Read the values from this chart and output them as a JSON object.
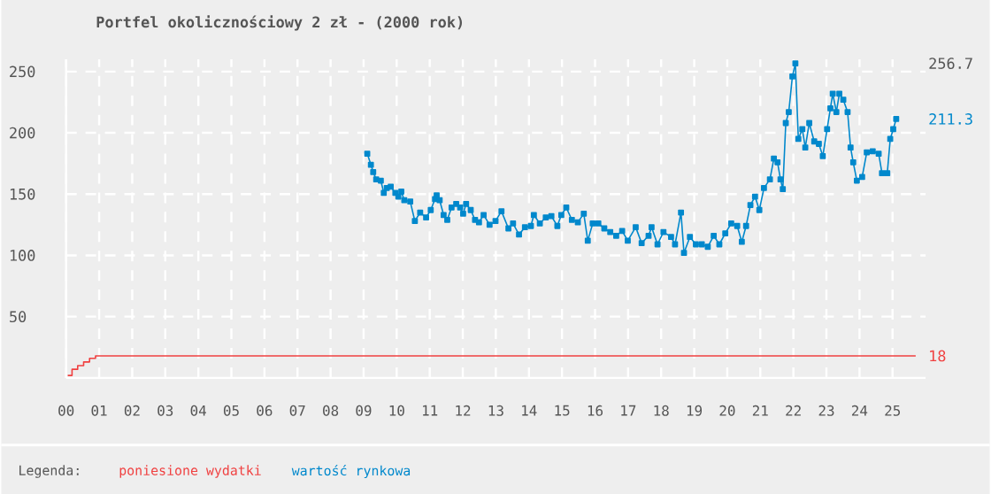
{
  "chart_data": {
    "type": "line",
    "title": "Portfel okolicznościowy 2 zł - (2000 rok)",
    "legend_title": "Legenda:",
    "legend": "bottom",
    "grid": true,
    "xlim": [
      2000,
      2026
    ],
    "ylim": [
      0,
      260
    ],
    "yticks": [
      50,
      100,
      150,
      200,
      250
    ],
    "xticks": [
      {
        "value": 2000,
        "label": "00"
      },
      {
        "value": 2001,
        "label": "01"
      },
      {
        "value": 2002,
        "label": "02"
      },
      {
        "value": 2003,
        "label": "03"
      },
      {
        "value": 2004,
        "label": "04"
      },
      {
        "value": 2005,
        "label": "05"
      },
      {
        "value": 2006,
        "label": "06"
      },
      {
        "value": 2007,
        "label": "07"
      },
      {
        "value": 2008,
        "label": "08"
      },
      {
        "value": 2009,
        "label": "09"
      },
      {
        "value": 2010,
        "label": "10"
      },
      {
        "value": 2011,
        "label": "11"
      },
      {
        "value": 2012,
        "label": "12"
      },
      {
        "value": 2013,
        "label": "13"
      },
      {
        "value": 2014,
        "label": "14"
      },
      {
        "value": 2015,
        "label": "15"
      },
      {
        "value": 2016,
        "label": "16"
      },
      {
        "value": 2017,
        "label": "17"
      },
      {
        "value": 2018,
        "label": "18"
      },
      {
        "value": 2019,
        "label": "19"
      },
      {
        "value": 2020,
        "label": "20"
      },
      {
        "value": 2021,
        "label": "21"
      },
      {
        "value": 2022,
        "label": "22"
      },
      {
        "value": 2023,
        "label": "23"
      },
      {
        "value": 2024,
        "label": "24"
      },
      {
        "value": 2025,
        "label": "25"
      }
    ],
    "series": [
      {
        "name": "poniesione wydatki",
        "type": "step",
        "color": "#f04040",
        "marker": "none",
        "x": [
          2000.05,
          2000.18,
          2000.35,
          2000.53,
          2000.71,
          2000.89,
          2025.7
        ],
        "values": [
          2,
          7,
          10,
          13,
          16,
          18,
          18
        ]
      },
      {
        "name": "wartość rynkowa",
        "color": "#0088cc",
        "marker": "square",
        "x": [
          2009.11,
          2009.22,
          2009.29,
          2009.38,
          2009.52,
          2009.61,
          2009.7,
          2009.82,
          2009.96,
          2010.05,
          2010.14,
          2010.23,
          2010.41,
          2010.55,
          2010.71,
          2010.89,
          2011.03,
          2011.16,
          2011.21,
          2011.3,
          2011.42,
          2011.53,
          2011.66,
          2011.8,
          2011.92,
          2012.01,
          2012.1,
          2012.24,
          2012.37,
          2012.49,
          2012.63,
          2012.81,
          2012.99,
          2013.17,
          2013.38,
          2013.52,
          2013.7,
          2013.88,
          2014.06,
          2014.15,
          2014.33,
          2014.51,
          2014.68,
          2014.86,
          2014.98,
          2015.13,
          2015.3,
          2015.48,
          2015.66,
          2015.78,
          2015.93,
          2016.1,
          2016.28,
          2016.46,
          2016.64,
          2016.82,
          2016.99,
          2017.23,
          2017.41,
          2017.62,
          2017.71,
          2017.89,
          2018.07,
          2018.3,
          2018.42,
          2018.6,
          2018.69,
          2018.87,
          2019.05,
          2019.23,
          2019.41,
          2019.59,
          2019.76,
          2019.94,
          2020.12,
          2020.3,
          2020.44,
          2020.57,
          2020.7,
          2020.84,
          2020.97,
          2021.11,
          2021.29,
          2021.41,
          2021.52,
          2021.61,
          2021.68,
          2021.77,
          2021.86,
          2021.97,
          2022.06,
          2022.15,
          2022.27,
          2022.36,
          2022.48,
          2022.63,
          2022.77,
          2022.89,
          2023.02,
          2023.12,
          2023.19,
          2023.3,
          2023.39,
          2023.51,
          2023.64,
          2023.73,
          2023.81,
          2023.92,
          2024.08,
          2024.22,
          2024.4,
          2024.58,
          2024.68,
          2024.84,
          2024.93,
          2025.02,
          2025.11
        ],
        "values": [
          183,
          174,
          168,
          162,
          161,
          151,
          155,
          156,
          151,
          148,
          152,
          145,
          144,
          128,
          135,
          131,
          137,
          146,
          149,
          145,
          133,
          129,
          139,
          142,
          139,
          134,
          142,
          137,
          129,
          127,
          133,
          125,
          128,
          136,
          122,
          126,
          117,
          123,
          124,
          133,
          126,
          131,
          132,
          124,
          133,
          139,
          129,
          127,
          134,
          112,
          126,
          126,
          122,
          119,
          116,
          120,
          112,
          123,
          110,
          116,
          123,
          109,
          119,
          115,
          109,
          135,
          102,
          115,
          109,
          109,
          107,
          116,
          109,
          118,
          126,
          124,
          111,
          124,
          141,
          148,
          137,
          155,
          162,
          179,
          176,
          162,
          154,
          208,
          217,
          246,
          256.7,
          195,
          203,
          188,
          208,
          193,
          191,
          181,
          203,
          220,
          232,
          217,
          232,
          227,
          217,
          188,
          176,
          161,
          164,
          184,
          185,
          183,
          167,
          167,
          195,
          203,
          211.3
        ]
      }
    ],
    "y2lim": [
      0,
      260
    ],
    "y2ticks": [
      256.7,
      211.3,
      18
    ]
  }
}
